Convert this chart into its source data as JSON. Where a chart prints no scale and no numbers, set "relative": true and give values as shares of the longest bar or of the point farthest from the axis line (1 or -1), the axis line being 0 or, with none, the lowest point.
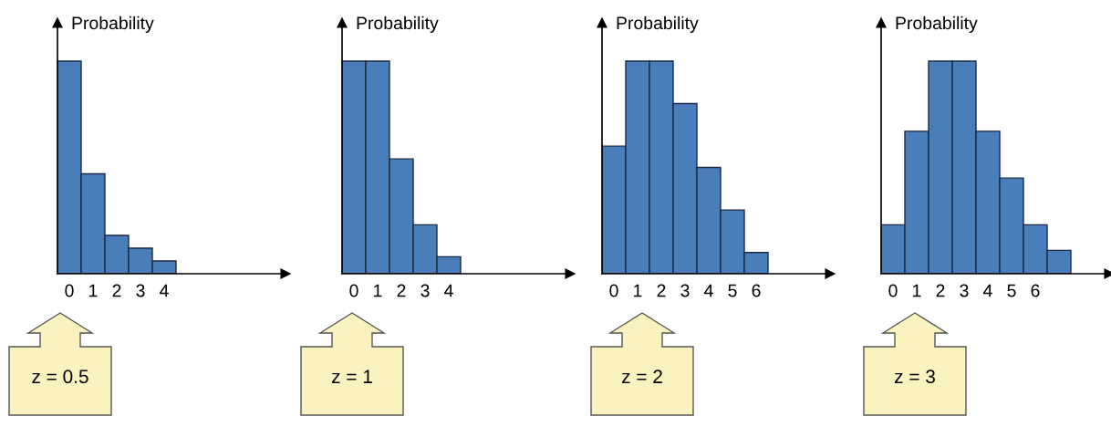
{
  "chart_data": [
    {
      "type": "bar",
      "relative": true,
      "ylabel": "Probability",
      "categories": [
        "0",
        "1",
        "2",
        "3",
        "4"
      ],
      "values": [
        1,
        0.47,
        0.18,
        0.12,
        0.06
      ],
      "color": "#4a7ebb",
      "tick_labels": "x",
      "grid": false,
      "legend": false,
      "annotations": [
        "z = 0.5"
      ]
    },
    {
      "type": "bar",
      "relative": true,
      "ylabel": "Probability",
      "categories": [
        "0",
        "1",
        "2",
        "3",
        "4"
      ],
      "values": [
        1,
        1,
        0.54,
        0.23,
        0.08
      ],
      "color": "#4a7ebb",
      "tick_labels": "x",
      "grid": false,
      "legend": false,
      "annotations": [
        "z = 1"
      ]
    },
    {
      "type": "bar",
      "relative": true,
      "ylabel": "Probability",
      "categories": [
        "0",
        "1",
        "2",
        "3",
        "4",
        "5",
        "6"
      ],
      "values": [
        0.6,
        1,
        1,
        0.8,
        0.5,
        0.3,
        0.1
      ],
      "color": "#4a7ebb",
      "tick_labels": "x",
      "grid": false,
      "legend": false,
      "annotations": [
        "z = 2"
      ]
    },
    {
      "type": "bar",
      "relative": true,
      "ylabel": "Probability",
      "categories": [
        "0",
        "1",
        "2",
        "3",
        "4",
        "5",
        "6",
        null
      ],
      "values": [
        0.23,
        0.67,
        1,
        1,
        0.67,
        0.45,
        0.23,
        0.11
      ],
      "color": "#4a7ebb",
      "tick_labels": "x",
      "grid": false,
      "legend": false,
      "annotations": [
        "z = 3"
      ]
    }
  ]
}
